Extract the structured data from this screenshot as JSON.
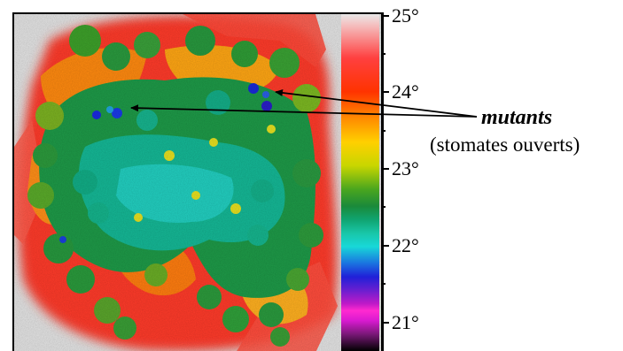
{
  "temperature_scale": {
    "labels": [
      "25°",
      "24°",
      "23°",
      "22°",
      "21°"
    ]
  },
  "annotation": {
    "mutants": "mutants",
    "stomates": "(stomates ouverts)"
  }
}
